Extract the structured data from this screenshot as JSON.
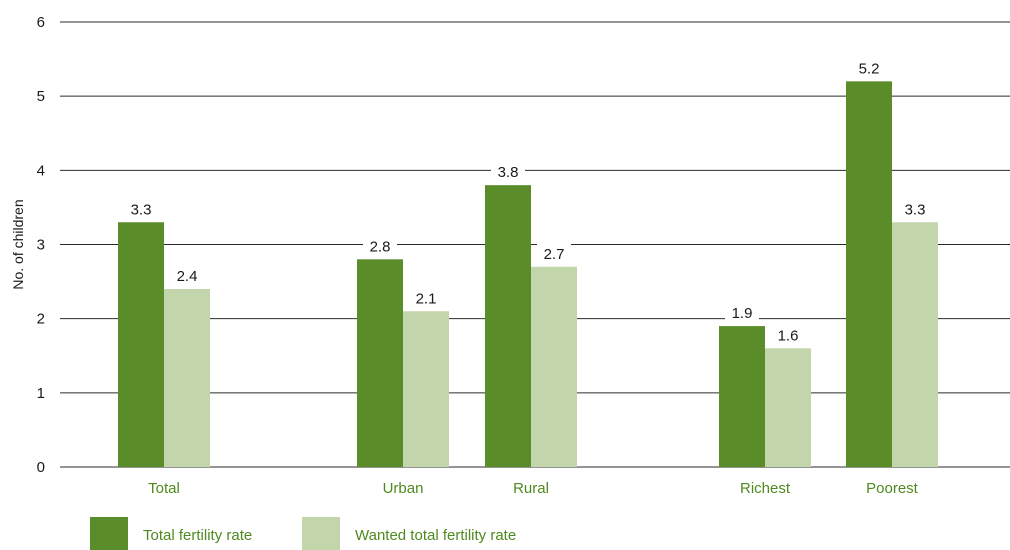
{
  "chart_data": {
    "type": "bar",
    "ylabel": "No. of children",
    "ylim": [
      0,
      6
    ],
    "yticks": [
      0,
      1,
      2,
      3,
      4,
      5,
      6
    ],
    "grid": true,
    "legend_position": "bottom-left",
    "categories": [
      "Total",
      "Urban",
      "Rural",
      "Richest",
      "Poorest"
    ],
    "series": [
      {
        "name": "Total fertility rate",
        "color": "#5b8c2a",
        "values": [
          3.3,
          2.8,
          3.8,
          1.9,
          5.2
        ]
      },
      {
        "name": "Wanted total fertility rate",
        "color": "#c3d5ab",
        "values": [
          2.4,
          2.1,
          2.7,
          1.6,
          3.3
        ]
      }
    ],
    "category_label_color": "#4e8a1f"
  }
}
